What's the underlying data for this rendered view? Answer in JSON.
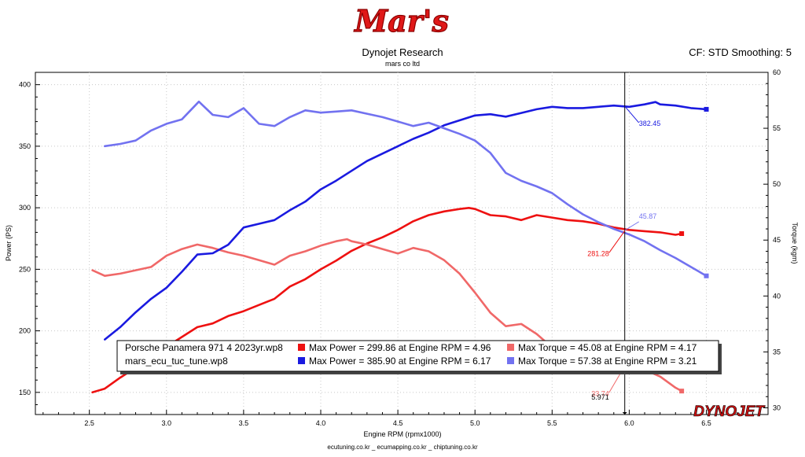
{
  "header": {
    "logo_text": "Mar's",
    "title": "Dynojet Research",
    "subtitle": "mars co ltd",
    "cf_text": "CF: STD Smoothing: 5",
    "brand_logo": "DYNOJET"
  },
  "footer": {
    "text": "ecutuning.co.kr _ ecumapping.co.kr _ chiptuning.co.kr"
  },
  "colors": {
    "stock_power": "#ee1111",
    "stock_torque": "#f06868",
    "tuned_power": "#1a1ae0",
    "tuned_torque": "#7272f0",
    "cursor": "#000000"
  },
  "chart_data": {
    "type": "line",
    "xlabel": "Engine RPM (rpmx1000)",
    "ylabel": "Power (PS)",
    "y2label": "Torque (kgm)",
    "xlim": [
      2.15,
      6.9
    ],
    "ylim": [
      132,
      410
    ],
    "y2lim": [
      29.4,
      60
    ],
    "x_ticks": [
      "2.5",
      "3.0",
      "3.5",
      "4.0",
      "4.5",
      "5.0",
      "5.5",
      "6.0",
      "6.5"
    ],
    "y_ticks": [
      "150",
      "200",
      "250",
      "300",
      "350",
      "400"
    ],
    "y2_ticks": [
      "30",
      "35",
      "40",
      "45",
      "50",
      "55",
      "60"
    ],
    "grid": true,
    "cursor_rpm": "5.971",
    "cursor_labels": {
      "tuned_power": "382.45",
      "tuned_torque": "45.87",
      "stock_power": "281.28",
      "stock_torque": "33.74"
    },
    "legend": {
      "files": [
        "Porsche Panamera 971 4 2023yr.wp8",
        "mars_ecu_tuc_tune.wp8"
      ],
      "rows": [
        {
          "power_text": "Max Power = 299.86 at Engine RPM = 4.96",
          "torque_text": "Max Torque = 45.08 at Engine RPM = 4.17"
        },
        {
          "power_text": "Max Power = 385.90 at Engine RPM = 6.17",
          "torque_text": "Max Torque = 57.38 at Engine RPM = 3.21"
        }
      ]
    },
    "series": [
      {
        "key": "stock_power",
        "axis": "left",
        "x": [
          2.52,
          2.6,
          2.7,
          2.8,
          2.9,
          3.0,
          3.1,
          3.2,
          3.3,
          3.4,
          3.5,
          3.6,
          3.7,
          3.8,
          3.9,
          4.0,
          4.1,
          4.2,
          4.3,
          4.4,
          4.5,
          4.6,
          4.7,
          4.8,
          4.9,
          4.96,
          5.0,
          5.1,
          5.2,
          5.3,
          5.4,
          5.5,
          5.6,
          5.7,
          5.8,
          5.9,
          6.0,
          6.1,
          6.2,
          6.3,
          6.34
        ],
        "y": [
          150,
          153,
          162,
          170,
          178,
          187,
          195,
          203,
          206,
          212,
          216,
          221,
          226,
          236,
          242,
          250,
          257,
          265,
          271,
          276,
          282,
          289,
          294,
          297,
          299,
          299.86,
          299,
          294,
          293,
          290,
          294,
          292,
          290,
          289,
          287,
          284,
          282,
          281,
          280,
          278,
          279
        ]
      },
      {
        "key": "stock_torque",
        "axis": "right",
        "x": [
          2.52,
          2.6,
          2.7,
          2.8,
          2.9,
          3.0,
          3.1,
          3.2,
          3.3,
          3.4,
          3.5,
          3.6,
          3.7,
          3.8,
          3.9,
          4.0,
          4.1,
          4.17,
          4.2,
          4.3,
          4.4,
          4.5,
          4.6,
          4.7,
          4.8,
          4.9,
          5.0,
          5.1,
          5.2,
          5.3,
          5.4,
          5.5,
          5.6,
          5.7,
          5.8,
          5.9,
          6.0,
          6.1,
          6.2,
          6.3,
          6.34
        ],
        "y": [
          42.3,
          41.8,
          42.0,
          42.3,
          42.6,
          43.6,
          44.2,
          44.6,
          44.3,
          43.9,
          43.6,
          43.2,
          42.8,
          43.6,
          44.0,
          44.5,
          44.9,
          45.08,
          44.9,
          44.6,
          44.2,
          43.8,
          44.3,
          44.0,
          43.2,
          42.0,
          40.3,
          38.5,
          37.3,
          37.5,
          36.6,
          35.4,
          34.9,
          34.6,
          34.2,
          33.9,
          33.74,
          33.4,
          32.8,
          31.8,
          31.5
        ]
      },
      {
        "key": "tuned_power",
        "axis": "left",
        "x": [
          2.6,
          2.7,
          2.8,
          2.9,
          3.0,
          3.1,
          3.2,
          3.3,
          3.4,
          3.5,
          3.6,
          3.7,
          3.8,
          3.9,
          4.0,
          4.1,
          4.2,
          4.3,
          4.4,
          4.5,
          4.6,
          4.7,
          4.8,
          4.9,
          5.0,
          5.1,
          5.2,
          5.3,
          5.4,
          5.5,
          5.6,
          5.7,
          5.8,
          5.9,
          6.0,
          6.1,
          6.17,
          6.2,
          6.3,
          6.4,
          6.5
        ],
        "y": [
          193,
          203,
          215,
          226,
          235,
          248,
          262,
          263,
          270,
          284,
          287,
          290,
          298,
          305,
          315,
          322,
          330,
          338,
          344,
          350,
          356,
          361,
          367,
          371,
          375,
          376,
          374,
          377,
          380,
          382,
          381,
          381,
          382,
          383,
          382,
          384,
          385.9,
          384,
          383,
          381,
          380
        ]
      },
      {
        "key": "tuned_torque",
        "axis": "right",
        "x": [
          2.6,
          2.7,
          2.8,
          2.9,
          3.0,
          3.1,
          3.21,
          3.3,
          3.4,
          3.5,
          3.6,
          3.7,
          3.8,
          3.9,
          4.0,
          4.1,
          4.2,
          4.3,
          4.4,
          4.5,
          4.6,
          4.7,
          4.8,
          4.9,
          5.0,
          5.1,
          5.2,
          5.3,
          5.4,
          5.5,
          5.6,
          5.7,
          5.8,
          5.9,
          6.0,
          6.1,
          6.2,
          6.3,
          6.4,
          6.5
        ],
        "y": [
          53.4,
          53.6,
          53.9,
          54.8,
          55.4,
          55.8,
          57.38,
          56.2,
          56.0,
          56.8,
          55.4,
          55.2,
          56.0,
          56.6,
          56.4,
          56.5,
          56.6,
          56.3,
          56.0,
          55.6,
          55.2,
          55.5,
          55.0,
          54.5,
          53.9,
          52.8,
          51.0,
          50.3,
          49.8,
          49.2,
          48.2,
          47.3,
          46.6,
          46.0,
          45.5,
          44.9,
          44.1,
          43.4,
          42.6,
          41.8
        ]
      }
    ]
  }
}
